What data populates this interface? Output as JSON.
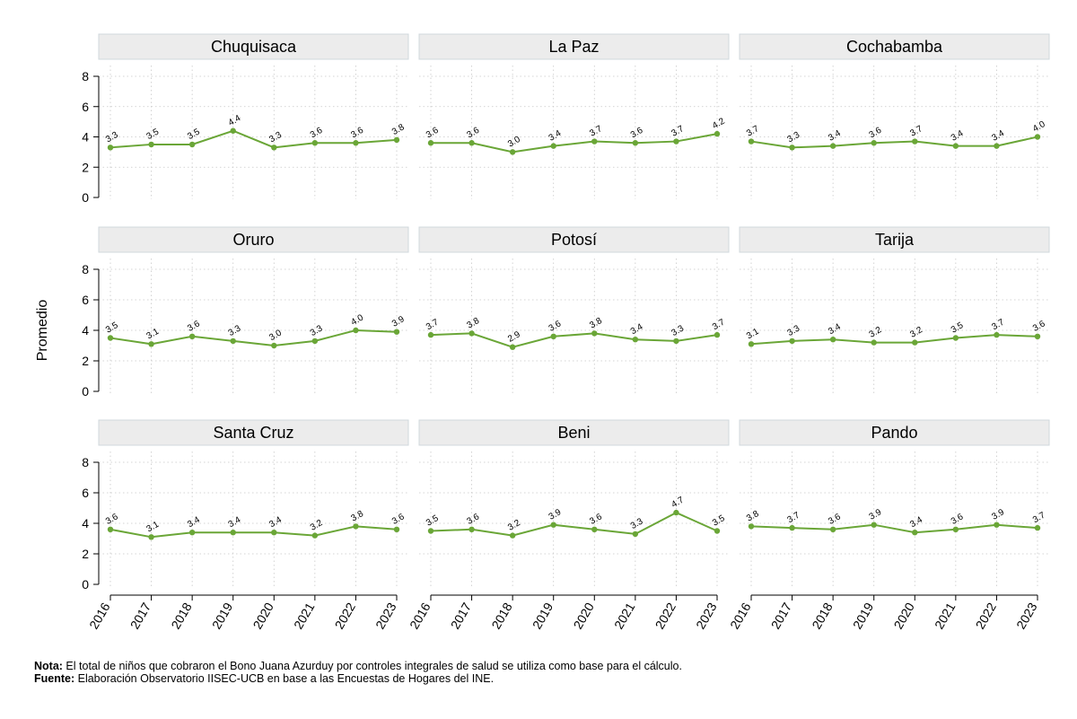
{
  "chart_data": {
    "type": "line",
    "ylabel": "Promedio",
    "ylim": [
      0,
      8
    ],
    "yticks": [
      "0",
      "2",
      "4",
      "6",
      "8"
    ],
    "x": [
      "2016",
      "2017",
      "2018",
      "2019",
      "2020",
      "2021",
      "2022",
      "2023"
    ],
    "line_color": "#6aa637",
    "header_bg": "#ececec",
    "grid": true,
    "panels": [
      {
        "name": "Chuquisaca",
        "values": [
          3.3,
          3.5,
          3.5,
          4.4,
          3.3,
          3.6,
          3.6,
          3.8
        ],
        "labels": [
          "3.3",
          "3.5",
          "3.5",
          "4.4",
          "3.3",
          "3.6",
          "3.6",
          "3.8"
        ]
      },
      {
        "name": "La Paz",
        "values": [
          3.6,
          3.6,
          3.0,
          3.4,
          3.7,
          3.6,
          3.7,
          4.2
        ],
        "labels": [
          "3.6",
          "3.6",
          "3.0",
          "3.4",
          "3.7",
          "3.6",
          "3.7",
          "4.2"
        ]
      },
      {
        "name": "Cochabamba",
        "values": [
          3.7,
          3.3,
          3.4,
          3.6,
          3.7,
          3.4,
          3.4,
          4.0
        ],
        "labels": [
          "3.7",
          "3.3",
          "3.4",
          "3.6",
          "3.7",
          "3.4",
          "3.4",
          "4.0"
        ]
      },
      {
        "name": "Oruro",
        "values": [
          3.5,
          3.1,
          3.6,
          3.3,
          3.0,
          3.3,
          4.0,
          3.9
        ],
        "labels": [
          "3.5",
          "3.1",
          "3.6",
          "3.3",
          "3.0",
          "3.3",
          "4.0",
          "3.9"
        ]
      },
      {
        "name": "Potosí",
        "values": [
          3.7,
          3.8,
          2.9,
          3.6,
          3.8,
          3.4,
          3.3,
          3.7
        ],
        "labels": [
          "3.7",
          "3.8",
          "2.9",
          "3.6",
          "3.8",
          "3.4",
          "3.3",
          "3.7"
        ]
      },
      {
        "name": "Tarija",
        "values": [
          3.1,
          3.3,
          3.4,
          3.2,
          3.2,
          3.5,
          3.7,
          3.6
        ],
        "labels": [
          "3.1",
          "3.3",
          "3.4",
          "3.2",
          "3.2",
          "3.5",
          "3.7",
          "3.6"
        ]
      },
      {
        "name": "Santa Cruz",
        "values": [
          3.6,
          3.1,
          3.4,
          3.4,
          3.4,
          3.2,
          3.8,
          3.6
        ],
        "labels": [
          "3.6",
          "3.1",
          "3.4",
          "3.4",
          "3.4",
          "3.2",
          "3.8",
          "3.6"
        ]
      },
      {
        "name": "Beni",
        "values": [
          3.5,
          3.6,
          3.2,
          3.9,
          3.6,
          3.3,
          4.7,
          3.5
        ],
        "labels": [
          "3.5",
          "3.6",
          "3.2",
          "3.9",
          "3.6",
          "3.3",
          "4.7",
          "3.5"
        ]
      },
      {
        "name": "Pando",
        "values": [
          3.8,
          3.7,
          3.6,
          3.9,
          3.4,
          3.6,
          3.9,
          3.7
        ],
        "labels": [
          "3.8",
          "3.7",
          "3.6",
          "3.9",
          "3.4",
          "3.6",
          "3.9",
          "3.7"
        ]
      }
    ]
  },
  "footnote": {
    "note_label": "Nota:",
    "note_text": " El total de niños que cobraron el Bono Juana Azurduy por controles integrales de salud se utiliza como base para el cálculo.",
    "source_label": "Fuente:",
    "source_text": " Elaboración Observatorio IISEC-UCB en base a las Encuestas de Hogares del INE."
  }
}
